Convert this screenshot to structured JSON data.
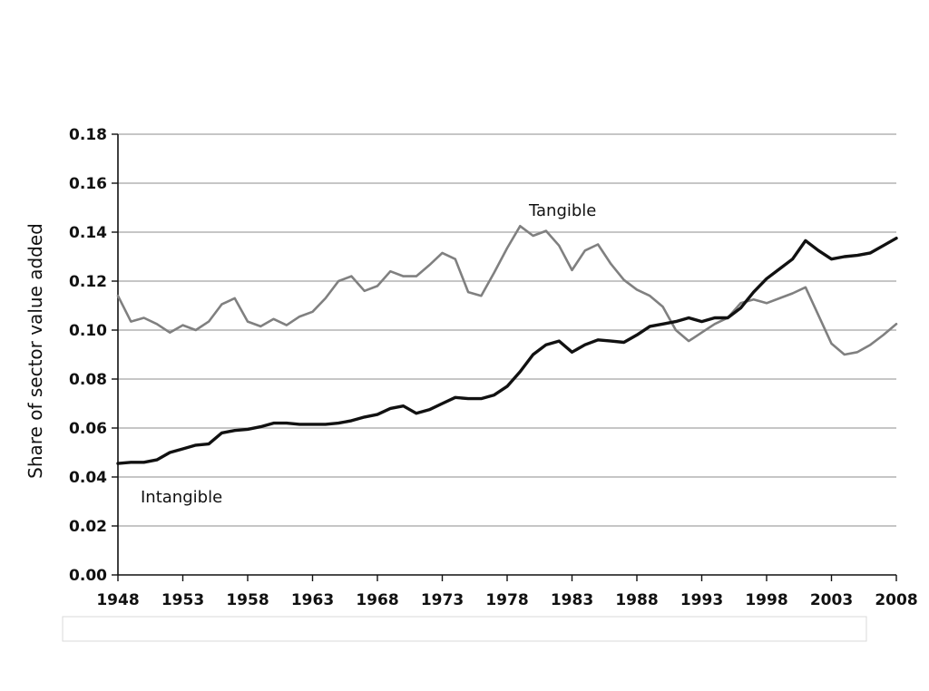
{
  "chart_data": {
    "type": "line",
    "xlabel": "",
    "ylabel": "Share of sector value added",
    "xlim": [
      1948,
      2008
    ],
    "ylim": [
      0,
      0.18
    ],
    "x_ticks": [
      "1948",
      "1953",
      "1958",
      "1963",
      "1968",
      "1973",
      "1978",
      "1983",
      "1988",
      "1993",
      "1998",
      "2003",
      "2008"
    ],
    "y_ticks": [
      "0.00",
      "0.02",
      "0.04",
      "0.06",
      "0.08",
      "0.10",
      "0.12",
      "0.14",
      "0.16",
      "0.18"
    ],
    "grid": "horizontal",
    "colors": {
      "intangible": "#111111",
      "tangible": "#808080"
    },
    "series": [
      {
        "name": "Intangible",
        "x": [
          1948,
          1949,
          1950,
          1951,
          1952,
          1953,
          1954,
          1955,
          1956,
          1957,
          1958,
          1959,
          1960,
          1961,
          1962,
          1963,
          1964,
          1965,
          1966,
          1967,
          1968,
          1969,
          1970,
          1971,
          1972,
          1973,
          1974,
          1975,
          1976,
          1977,
          1978,
          1979,
          1980,
          1981,
          1982,
          1983,
          1984,
          1985,
          1986,
          1987,
          1988,
          1989,
          1990,
          1991,
          1992,
          1993,
          1994,
          1995,
          1996,
          1997,
          1998,
          1999,
          2000,
          2001,
          2002,
          2003,
          2004,
          2005,
          2006,
          2007,
          2008
        ],
        "values": [
          0.0455,
          0.046,
          0.046,
          0.047,
          0.05,
          0.0515,
          0.053,
          0.0535,
          0.058,
          0.059,
          0.0595,
          0.0605,
          0.062,
          0.062,
          0.0615,
          0.0615,
          0.0615,
          0.062,
          0.063,
          0.0645,
          0.0655,
          0.068,
          0.069,
          0.066,
          0.0675,
          0.07,
          0.0725,
          0.072,
          0.072,
          0.0735,
          0.077,
          0.083,
          0.09,
          0.094,
          0.0955,
          0.091,
          0.094,
          0.096,
          0.0955,
          0.095,
          0.098,
          0.1015,
          0.1025,
          0.1035,
          0.105,
          0.1035,
          0.105,
          0.105,
          0.109,
          0.1155,
          0.121,
          0.125,
          0.129,
          0.1365,
          0.1325,
          0.129,
          0.13,
          0.1305,
          0.1315,
          0.1345,
          0.1375
        ]
      },
      {
        "name": "Tangible",
        "x": [
          1948,
          1949,
          1950,
          1951,
          1952,
          1953,
          1954,
          1955,
          1956,
          1957,
          1958,
          1959,
          1960,
          1961,
          1962,
          1963,
          1964,
          1965,
          1966,
          1967,
          1968,
          1969,
          1970,
          1971,
          1972,
          1973,
          1974,
          1975,
          1976,
          1977,
          1978,
          1979,
          1980,
          1981,
          1982,
          1983,
          1984,
          1985,
          1986,
          1987,
          1988,
          1989,
          1990,
          1991,
          1992,
          1993,
          1994,
          1995,
          1996,
          1997,
          1998,
          1999,
          2000,
          2001,
          2002,
          2003,
          2004,
          2005,
          2006,
          2007,
          2008
        ],
        "values": [
          0.114,
          0.1035,
          0.105,
          0.1025,
          0.099,
          0.102,
          0.1,
          0.1035,
          0.1105,
          0.113,
          0.1035,
          0.1015,
          0.1045,
          0.102,
          0.1055,
          0.1075,
          0.113,
          0.12,
          0.122,
          0.116,
          0.118,
          0.124,
          0.122,
          0.122,
          0.1265,
          0.1315,
          0.129,
          0.1155,
          0.114,
          0.1235,
          0.1335,
          0.1425,
          0.1385,
          0.1405,
          0.1345,
          0.1245,
          0.1325,
          0.135,
          0.127,
          0.1205,
          0.1165,
          0.114,
          0.1095,
          0.1,
          0.0955,
          0.099,
          0.1025,
          0.105,
          0.111,
          0.1125,
          0.111,
          0.113,
          0.115,
          0.1175,
          0.106,
          0.0945,
          0.09,
          0.091,
          0.094,
          0.098,
          0.1025
        ]
      }
    ],
    "annotations": [
      {
        "text": "Tangible",
        "series": "Tangible"
      },
      {
        "text": "Intangible",
        "series": "Intangible"
      }
    ]
  }
}
